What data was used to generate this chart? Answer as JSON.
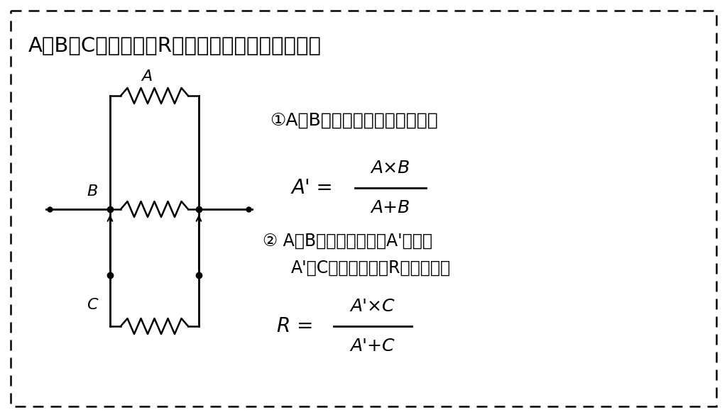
{
  "bg_color": "#ffffff",
  "border_color": "#000000",
  "text_color": "#000000",
  "title": "A，B，Cの並列抵抗Rを２段階の計算で求める。",
  "step1_text": "①A，Bの並列抵抗値を求める。",
  "step2_text": "② A，Bの並列抵抗値をA'として",
  "step2b_text": "A'とCの並列合成値Rを求める。",
  "formula1_lhs": "A' =",
  "formula1_num": "A×B",
  "formula1_den": "A+B",
  "formula2_lhs": "R =",
  "formula2_num": "A'×C",
  "formula2_den": "A'+C",
  "figsize": [
    10.24,
    5.88
  ],
  "dpi": 100
}
